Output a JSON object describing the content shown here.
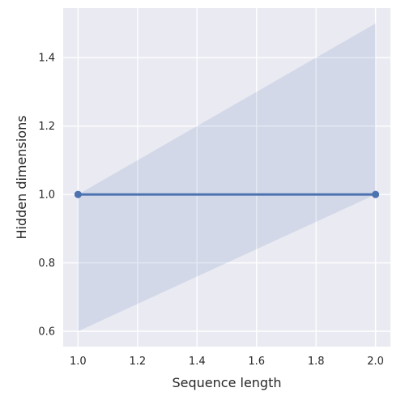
{
  "chart_data": {
    "type": "line",
    "title": "",
    "xlabel": "Sequence length",
    "ylabel": "Hidden dimensions",
    "xlim": [
      0.95,
      2.05
    ],
    "ylim": [
      0.555,
      1.545
    ],
    "x_ticks": [
      1.0,
      1.2,
      1.4,
      1.6,
      1.8,
      2.0
    ],
    "x_tick_labels": [
      "1.0",
      "1.2",
      "1.4",
      "1.6",
      "1.8",
      "2.0"
    ],
    "y_ticks": [
      0.6,
      0.8,
      1.0,
      1.2,
      1.4
    ],
    "y_tick_labels": [
      "0.6",
      "0.8",
      "1.0",
      "1.2",
      "1.4"
    ],
    "grid": true,
    "series": [
      {
        "x": [
          1.0,
          2.0
        ],
        "y": [
          1.0,
          1.0
        ],
        "markers": true,
        "color": "#4c72b0"
      }
    ],
    "confidence_band": {
      "x": [
        1.0,
        2.0
      ],
      "lower": [
        0.6,
        1.0
      ],
      "upper": [
        1.0,
        1.5
      ],
      "color": "#4c72b0"
    },
    "style": {
      "plot_background": "#eaeaf2",
      "grid_color": "#ffffff"
    }
  }
}
